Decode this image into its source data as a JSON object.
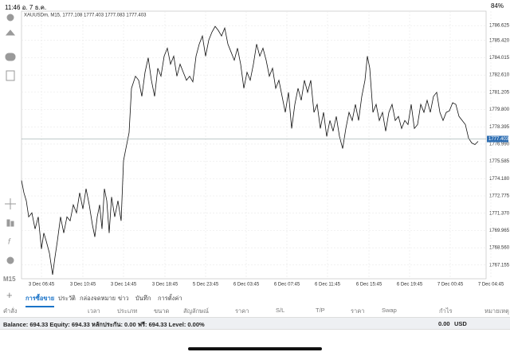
{
  "status_bar": {
    "time": "11:46  อ. 7 ธ.ค.",
    "battery": "84%"
  },
  "chart_data": {
    "type": "line",
    "title": "XAUUSDm, M15, 1777.108 1777.403 1777.083 1777.403",
    "timeframe": "M15",
    "color": "#111111",
    "x": [
      0,
      3,
      6,
      9,
      13,
      17,
      21,
      25,
      28,
      31,
      35,
      39,
      42,
      45,
      49,
      53,
      57,
      61,
      65,
      69,
      73,
      77,
      81,
      85,
      89,
      92,
      95,
      98,
      101,
      104,
      107,
      110,
      113,
      117,
      121,
      125,
      128,
      131,
      135,
      138,
      143,
      147,
      151,
      155,
      159,
      163,
      167,
      171,
      175,
      179,
      183,
      187,
      191,
      195,
      199,
      203,
      207,
      211,
      215,
      219,
      223,
      227,
      231,
      235,
      239,
      243,
      247,
      251,
      255,
      259,
      263,
      267,
      271,
      275,
      279,
      283,
      287,
      291,
      295,
      299,
      303,
      307,
      311,
      315,
      319,
      323,
      327,
      331,
      335,
      339,
      343,
      347,
      351,
      355,
      359,
      363,
      367,
      371,
      375,
      379,
      383,
      387,
      391,
      395,
      399,
      403,
      407,
      411,
      415,
      419,
      423,
      427,
      431,
      434,
      437,
      441,
      445,
      449,
      453,
      457,
      461,
      465,
      469,
      473,
      477,
      481,
      485,
      489,
      493,
      497,
      501,
      505,
      509,
      513,
      517,
      521,
      525,
      529,
      533,
      537,
      541,
      545,
      549,
      553,
      557,
      561,
      565,
      569,
      573
    ],
    "values": [
      1774.03,
      1773.03,
      1772.38,
      1771.07,
      1771.4,
      1770.09,
      1771.07,
      1768.46,
      1769.76,
      1769.11,
      1768.13,
      1766.37,
      1767.8,
      1769.11,
      1771.07,
      1769.76,
      1771.07,
      1770.75,
      1772.05,
      1771.4,
      1773.03,
      1771.72,
      1773.36,
      1772.05,
      1770.42,
      1769.44,
      1771.07,
      1772.05,
      1770.09,
      1773.36,
      1772.38,
      1769.76,
      1772.69,
      1771.07,
      1772.38,
      1770.75,
      1775.64,
      1776.63,
      1777.93,
      1781.53,
      1782.51,
      1782.18,
      1780.87,
      1782.83,
      1784.01,
      1782.18,
      1780.87,
      1783.16,
      1782.51,
      1784.14,
      1784.79,
      1783.49,
      1784.14,
      1782.51,
      1783.49,
      1782.83,
      1782.18,
      1782.51,
      1782.05,
      1784.14,
      1785.12,
      1785.78,
      1784.14,
      1785.45,
      1786.1,
      1786.56,
      1786.23,
      1785.78,
      1786.43,
      1785.12,
      1784.47,
      1783.81,
      1784.79,
      1783.49,
      1781.53,
      1782.83,
      1782.18,
      1783.49,
      1785.12,
      1784.14,
      1784.79,
      1783.81,
      1782.51,
      1783.16,
      1781.53,
      1782.18,
      1780.87,
      1779.57,
      1781.2,
      1778.26,
      1780.22,
      1781.53,
      1780.55,
      1782.18,
      1781.2,
      1782.18,
      1779.57,
      1780.22,
      1778.26,
      1779.57,
      1777.61,
      1778.91,
      1778.04,
      1779.24,
      1777.61,
      1776.63,
      1778.26,
      1779.57,
      1778.91,
      1780.22,
      1778.91,
      1780.87,
      1782.18,
      1784.14,
      1783.16,
      1779.57,
      1780.22,
      1778.91,
      1779.57,
      1778.04,
      1779.57,
      1780.22,
      1778.91,
      1779.24,
      1778.26,
      1778.91,
      1778.58,
      1780.22,
      1778.26,
      1778.58,
      1780.22,
      1779.57,
      1780.55,
      1779.57,
      1780.87,
      1781.2,
      1779.57,
      1778.91,
      1779.57,
      1779.7,
      1780.35,
      1780.22,
      1779.24,
      1778.91,
      1778.58,
      1777.47,
      1777.08,
      1776.95,
      1777.21
    ],
    "current_price": {
      "value": 1777.403,
      "label": "1777.403"
    },
    "xlim": [
      0,
      583
    ],
    "xticks": [
      {
        "value": 25,
        "label": "3 Dec 06:45"
      },
      {
        "value": 77,
        "label": "3 Dec 10:45"
      },
      {
        "value": 128,
        "label": "3 Dec 14:45"
      },
      {
        "value": 180,
        "label": "3 Dec 18:45"
      },
      {
        "value": 231,
        "label": "5 Dec 23:45"
      },
      {
        "value": 282,
        "label": "6 Dec 03:45"
      },
      {
        "value": 333,
        "label": "6 Dec 07:45"
      },
      {
        "value": 384,
        "label": "6 Dec 11:45"
      },
      {
        "value": 436,
        "label": "6 Dec 15:45"
      },
      {
        "value": 487,
        "label": "6 Dec 19:45"
      },
      {
        "value": 538,
        "label": "7 Dec 00:45"
      },
      {
        "value": 589,
        "label": "7 Dec 04:45"
      }
    ],
    "ylim": [
      1766.04,
      1787.8
    ],
    "yticks": [
      1786.625,
      {
        "value": 1785.42,
        "label": "1785.420"
      },
      1784.015,
      {
        "value": 1782.61,
        "label": "1782.610"
      },
      1781.205,
      {
        "value": 1779.8,
        "label": "1779.800"
      },
      1778.395,
      {
        "value": 1776.99,
        "label": "1776.990"
      },
      1775.585,
      {
        "value": 1774.18,
        "label": "1774.180"
      },
      1772.775,
      {
        "value": 1771.37,
        "label": "1771.370"
      },
      1769.965,
      {
        "value": 1768.56,
        "label": "1768.560"
      },
      1767.155
    ],
    "grid": true
  },
  "tabs": [
    "การซื้อขาย",
    "ประวัติ",
    "กล่องจดหมาย",
    "ข่าว",
    "บันทึก",
    "การตั้งค่า"
  ],
  "columns": [
    "คำสั่ง",
    "เวลา",
    "ประเภท",
    "ขนาด",
    "สัญลักษณ์",
    "ราคา",
    "S/L",
    "T/P",
    "ราคา",
    "Swap",
    "กำไร",
    "หมายเหตุ"
  ],
  "balance": {
    "text": "Balance: 694.33 Equity: 694.33 หลักประกัน: 0.00 ฟรี: 694.33 Level: 0.00%",
    "profit": "0.00",
    "currency": "USD"
  }
}
